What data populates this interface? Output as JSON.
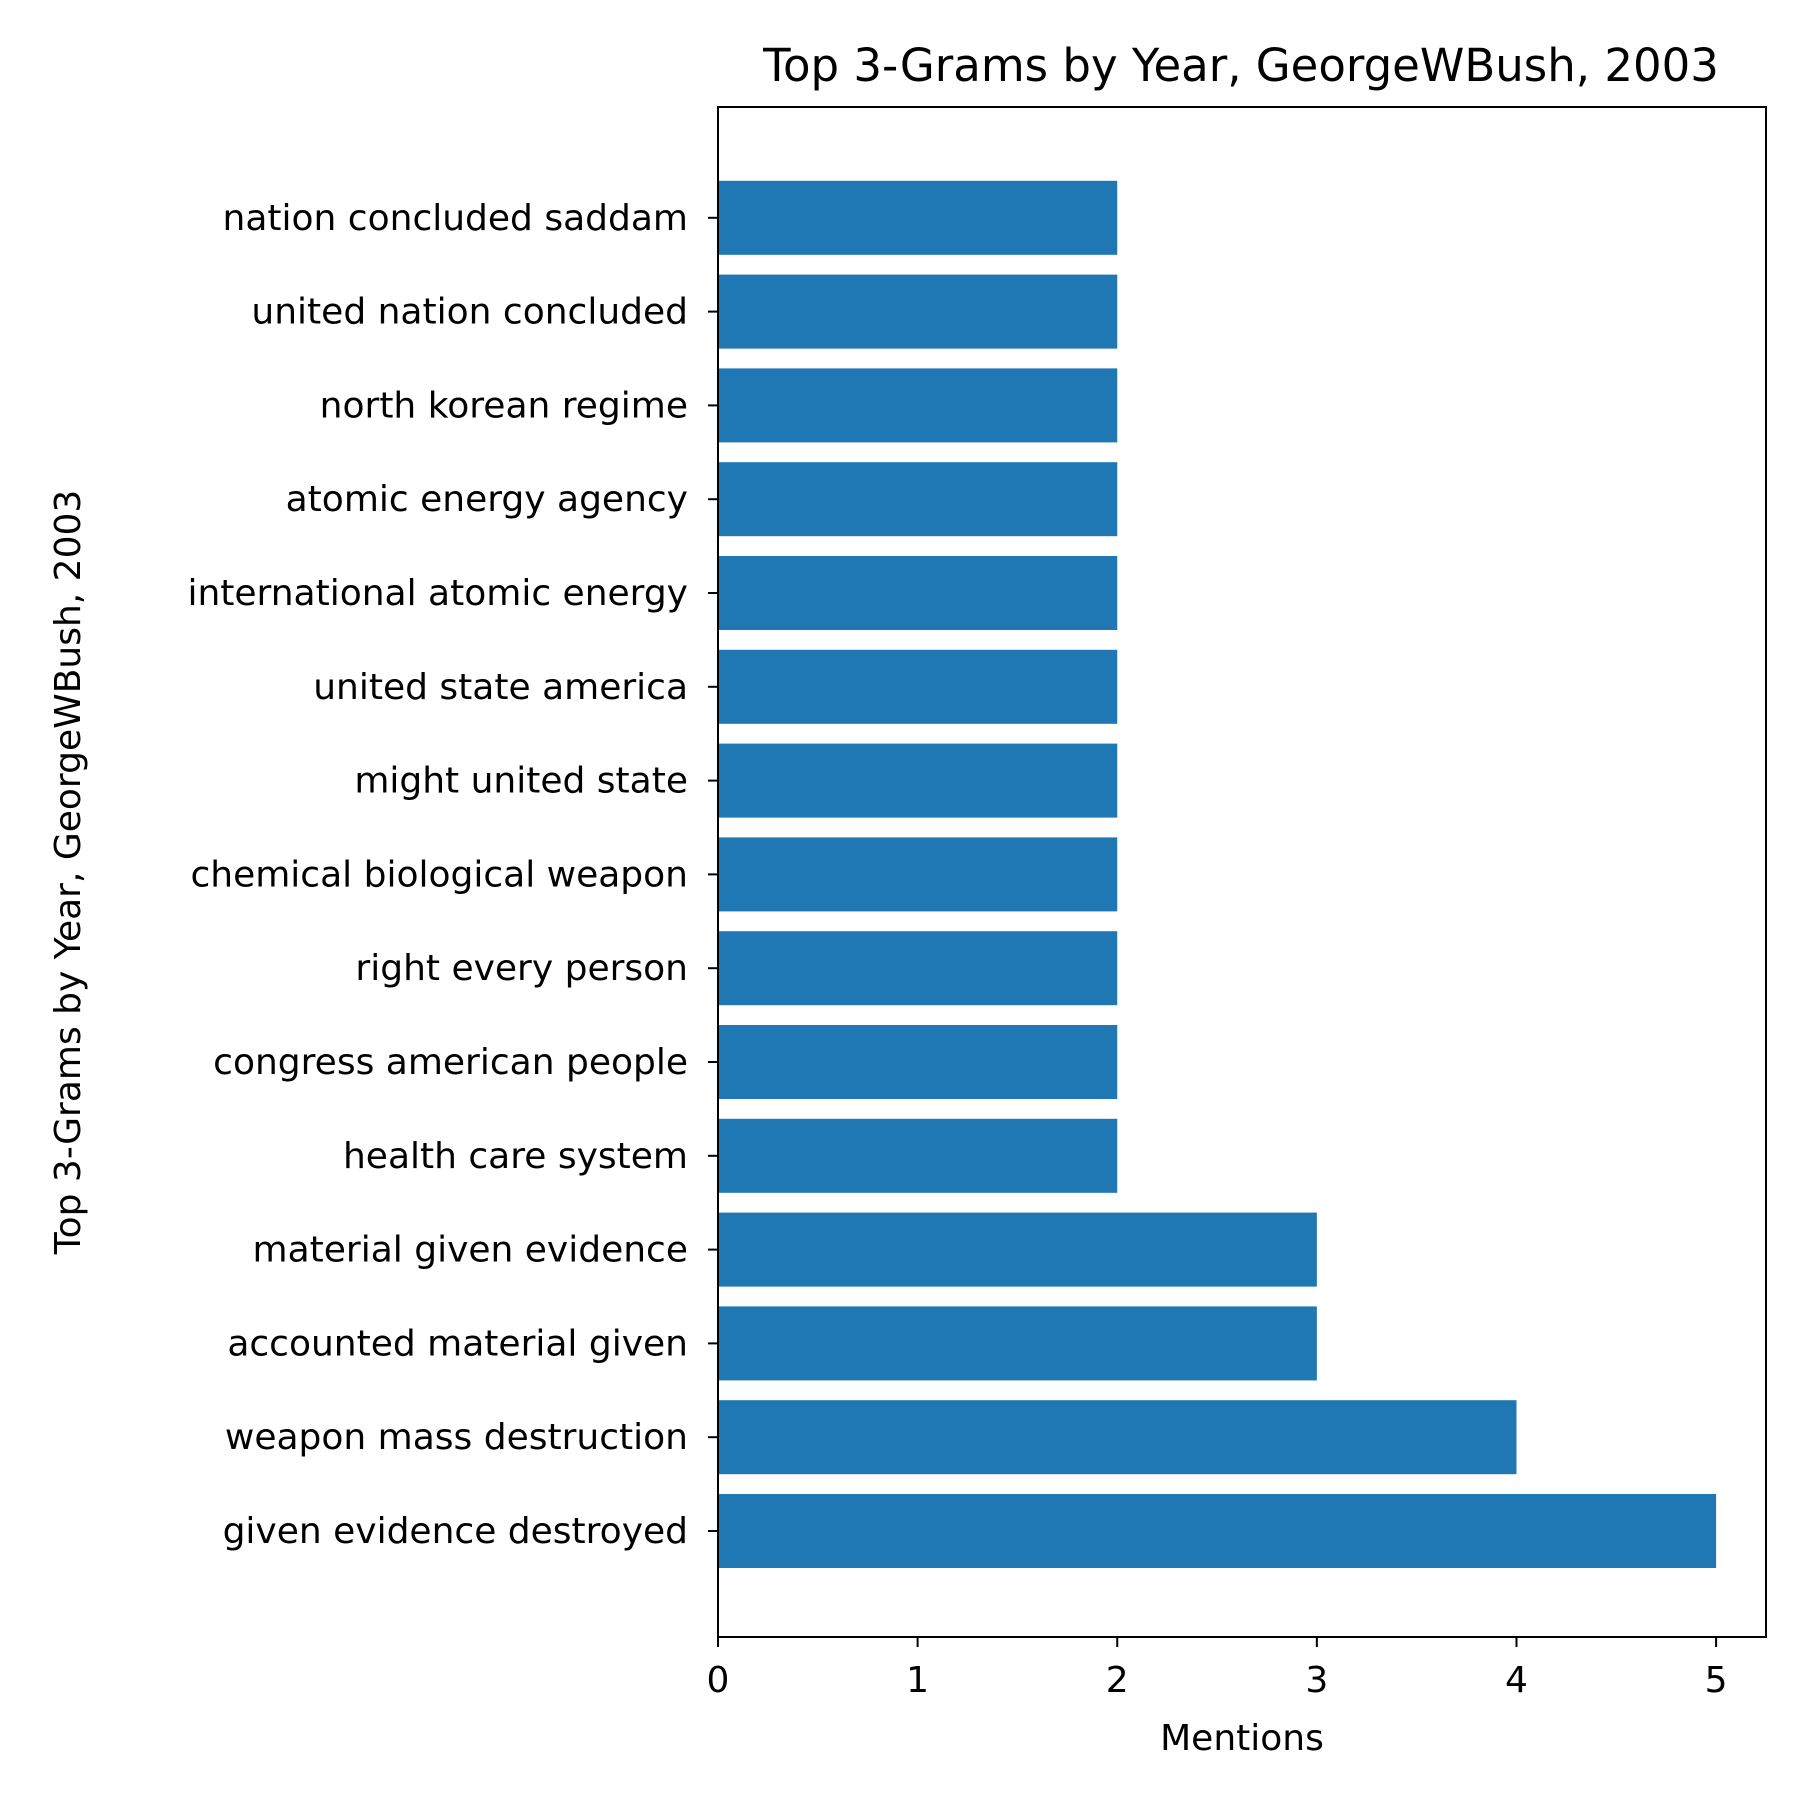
{
  "chart_data": {
    "type": "bar",
    "orientation": "horizontal",
    "title": "Top 3-Grams by Year, GeorgeWBush, 2003",
    "xlabel": "Mentions",
    "ylabel": "Top 3-Grams by Year, GeorgeWBush, 2003",
    "categories": [
      "given evidence destroyed",
      "weapon mass destruction",
      "accounted material given",
      "material given evidence",
      "health care system",
      "congress american people",
      "right every person",
      "chemical biological weapon",
      "might united state",
      "united state america",
      "international atomic energy",
      "atomic energy agency",
      "north korean regime",
      "united nation concluded",
      "nation concluded saddam"
    ],
    "values": [
      5,
      4,
      3,
      3,
      2,
      2,
      2,
      2,
      2,
      2,
      2,
      2,
      2,
      2,
      2
    ],
    "xlim": [
      0,
      5.25
    ],
    "xticks": [
      "0",
      "1",
      "2",
      "3",
      "4",
      "5"
    ],
    "grid": false,
    "bar_color": "#1f77b4"
  }
}
